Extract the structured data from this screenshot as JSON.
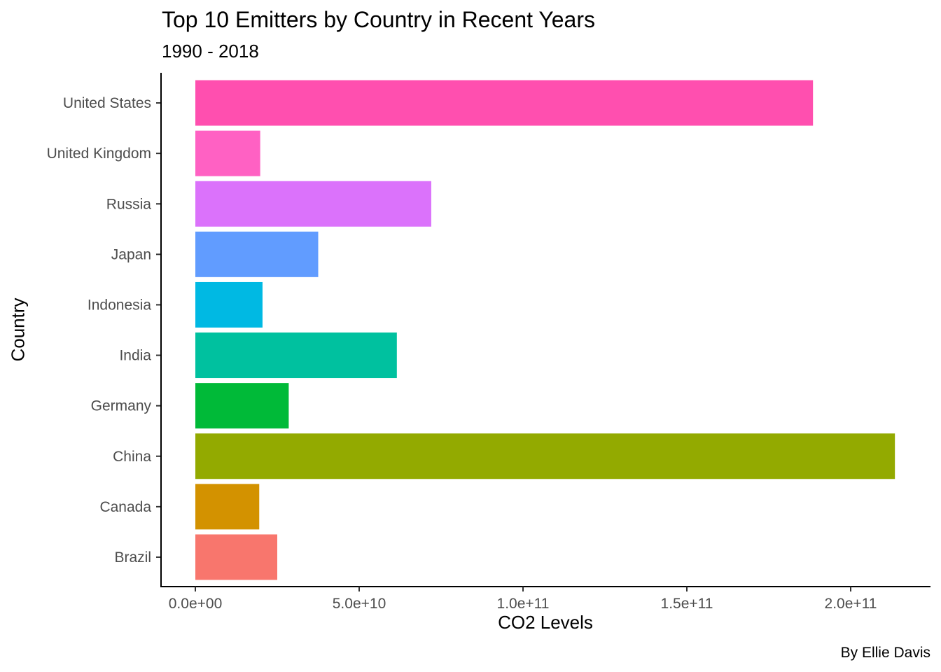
{
  "chart_data": {
    "type": "bar",
    "orientation": "horizontal",
    "title": "Top 10 Emitters by Country in Recent Years",
    "subtitle": "1990 - 2018",
    "caption": "By Ellie Davis",
    "xlabel": "CO2 Levels",
    "ylabel": "Country",
    "categories": [
      "Brazil",
      "Canada",
      "China",
      "Germany",
      "India",
      "Indonesia",
      "Japan",
      "Russia",
      "United Kingdom",
      "United States"
    ],
    "values": [
      25000000000,
      19500000000,
      213500000000,
      28500000000,
      61500000000,
      20500000000,
      37500000000,
      72000000000,
      19800000000,
      188500000000
    ],
    "colors": [
      "#F8766D",
      "#D39200",
      "#93AA00",
      "#00BA38",
      "#00C19F",
      "#00B9E3",
      "#619CFF",
      "#DB72FB",
      "#FF61C3",
      "#FF4FAF"
    ],
    "xlim": [
      -10500000000,
      224500000000
    ],
    "xticks": [
      0,
      50000000000,
      100000000000,
      150000000000,
      200000000000
    ],
    "xtick_labels": [
      "0.0e+00",
      "5.0e+10",
      "1.0e+11",
      "1.5e+11",
      "2.0e+11"
    ],
    "grid": false,
    "legend": "none"
  }
}
